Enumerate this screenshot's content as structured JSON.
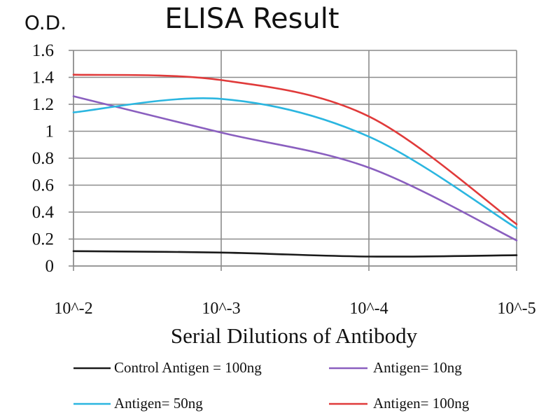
{
  "chart_data": {
    "type": "line",
    "title": "ELISA Result",
    "ylabel": "O.D.",
    "xlabel": "Serial Dilutions of Antibody",
    "categories": [
      "10^-2",
      "10^-3",
      "10^-4",
      "10^-5"
    ],
    "x_scale": "log",
    "x": [
      0.01,
      0.001,
      0.0001,
      1e-05
    ],
    "ylim": [
      0,
      1.6
    ],
    "yticks": [
      0,
      0.2,
      0.4,
      0.6,
      0.8,
      1,
      1.2,
      1.4,
      1.6
    ],
    "ytick_labels": [
      "0",
      "0.2",
      "0.4",
      "0.6",
      "0.8",
      "1",
      "1.2",
      "1.4",
      "1.6"
    ],
    "grid": true,
    "legend_position": "bottom",
    "series": [
      {
        "name": "Control Antigen = 100ng",
        "color": "#1a1a1a",
        "values": [
          0.11,
          0.1,
          0.07,
          0.08
        ]
      },
      {
        "name": "Antigen= 10ng",
        "color": "#8a5fbf",
        "values": [
          1.26,
          0.99,
          0.73,
          0.19
        ]
      },
      {
        "name": "Antigen= 50ng",
        "color": "#2bb6e0",
        "values": [
          1.14,
          1.24,
          0.96,
          0.28
        ]
      },
      {
        "name": "Antigen= 100ng",
        "color": "#e03a3a",
        "values": [
          1.42,
          1.38,
          1.11,
          0.31
        ]
      }
    ]
  }
}
